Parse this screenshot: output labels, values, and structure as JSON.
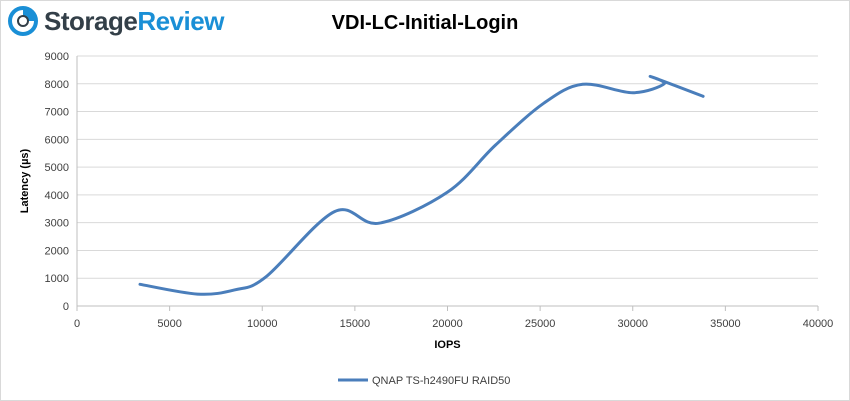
{
  "brand": {
    "name_part1": "Storage",
    "name_part2": "Review",
    "accent_color": "#1a8fd6",
    "text_color": "#333f48"
  },
  "chart_data": {
    "type": "line",
    "title": "VDI-LC-Initial-Login",
    "xlabel": "IOPS",
    "ylabel": "Latency (µs)",
    "xlim": [
      0,
      40000
    ],
    "ylim": [
      0,
      9000
    ],
    "xticks": [
      0,
      5000,
      10000,
      15000,
      20000,
      25000,
      30000,
      35000,
      40000
    ],
    "yticks": [
      0,
      1000,
      2000,
      3000,
      4000,
      5000,
      6000,
      7000,
      8000,
      9000
    ],
    "grid": "horizontal",
    "legend_position": "bottom",
    "series": [
      {
        "name": "QNAP TS-h2490FU RAID50",
        "color": "#4a7ebb",
        "points": [
          [
            3400,
            780
          ],
          [
            6500,
            430
          ],
          [
            8500,
            580
          ],
          [
            10200,
            1050
          ],
          [
            13900,
            3400
          ],
          [
            16300,
            2980
          ],
          [
            20000,
            4100
          ],
          [
            22600,
            5800
          ],
          [
            25200,
            7300
          ],
          [
            27300,
            7980
          ],
          [
            30000,
            7680
          ],
          [
            31700,
            8000
          ],
          [
            31000,
            8250
          ],
          [
            33800,
            7550
          ]
        ]
      }
    ]
  }
}
